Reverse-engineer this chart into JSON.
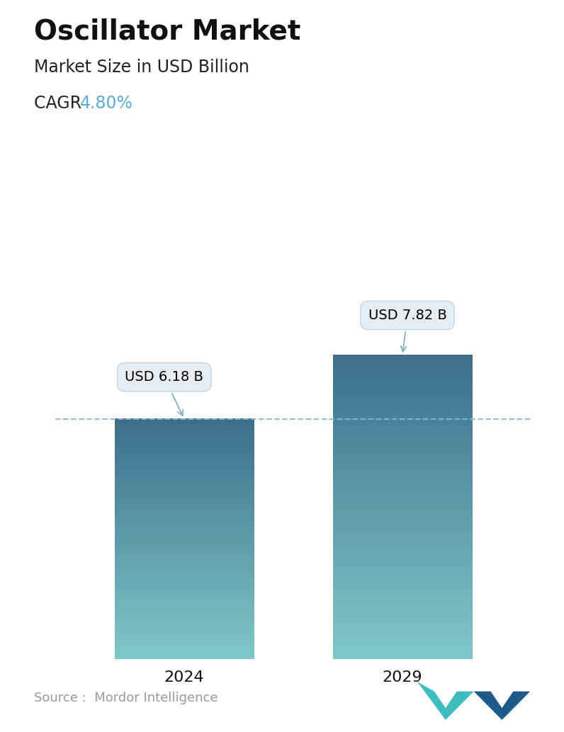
{
  "title": "Oscillator Market",
  "subtitle": "Market Size in USD Billion",
  "cagr_label": "CAGR  ",
  "cagr_value": "4.80%",
  "cagr_color": "#5bacd4",
  "categories": [
    "2024",
    "2029"
  ],
  "values": [
    6.18,
    7.82
  ],
  "bar_labels": [
    "USD 6.18 B",
    "USD 7.82 B"
  ],
  "bar_color_top": "#3d6e8a",
  "bar_color_bottom": "#80c8c8",
  "dashed_line_y": 6.18,
  "dashed_line_color": "#88b8cc",
  "ylim": [
    0,
    9.8
  ],
  "bar_width": 0.28,
  "source_text": "Source :  Mordor Intelligence",
  "background_color": "#ffffff",
  "title_fontsize": 28,
  "subtitle_fontsize": 17,
  "cagr_fontsize": 17,
  "bar_label_fontsize": 14,
  "xtick_fontsize": 16,
  "source_fontsize": 13
}
